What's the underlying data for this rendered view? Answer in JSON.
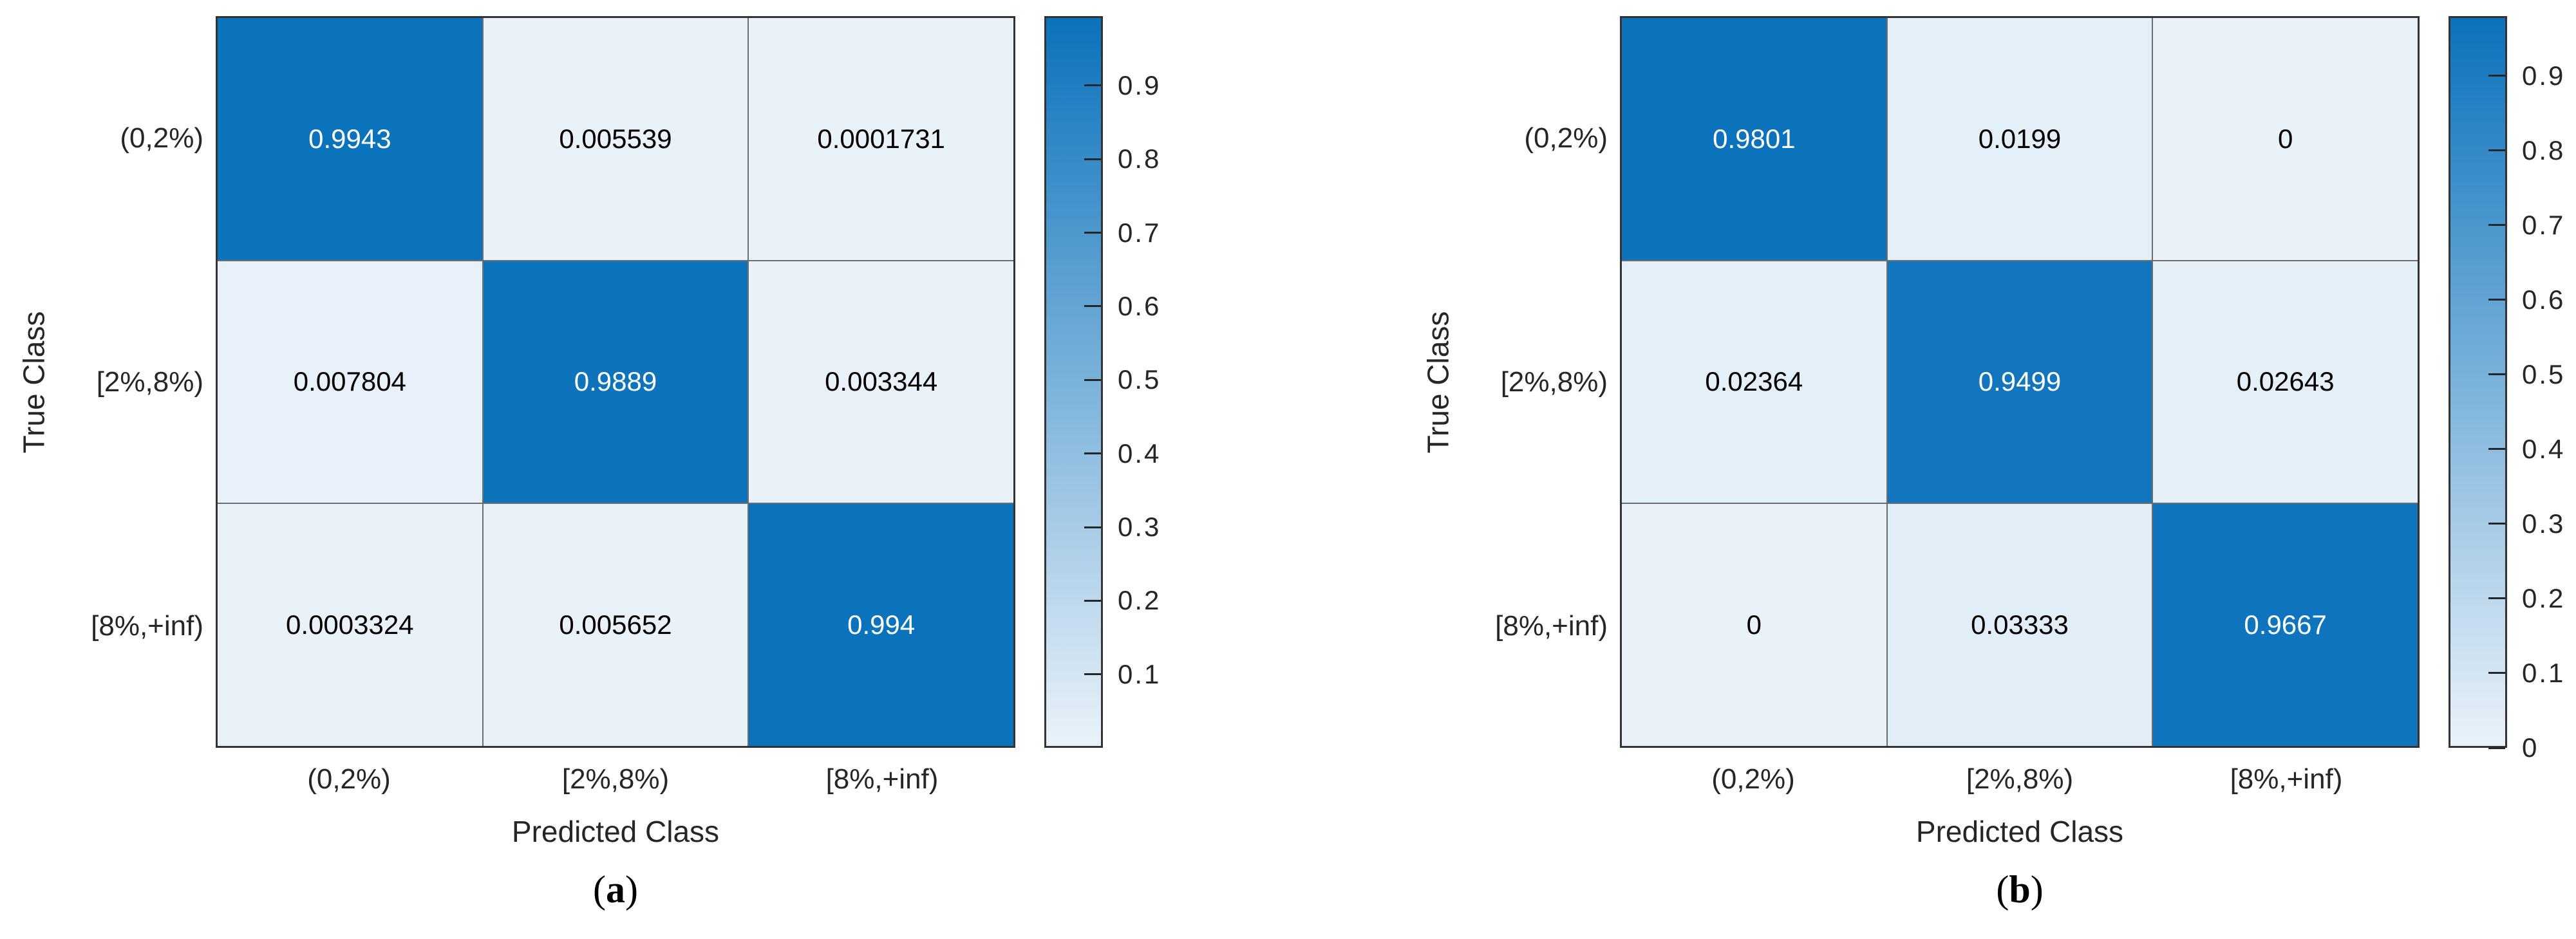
{
  "colors": {
    "diagonal_blue": "#0B72BC",
    "cell_low": "#EAF2F9",
    "grid_line": "#6E6E6E",
    "frame": "#333333",
    "axis_text": "#262626",
    "cell_text_on_dark": "#FFFFFF",
    "cell_text_on_light": "#000000"
  },
  "chart_data": [
    {
      "type": "heatmap",
      "panel": "a",
      "caption_prefix": "(",
      "caption_letter": "a",
      "caption_suffix": ")",
      "xlabel": "Predicted Class",
      "ylabel": "True Class",
      "x_categories": [
        "(0,2%)",
        "[2%,8%)",
        "[8%,+inf)"
      ],
      "y_categories": [
        "(0,2%)",
        "[2%,8%)",
        "[8%,+inf)"
      ],
      "values": [
        [
          0.9943,
          0.005539,
          0.0001731
        ],
        [
          0.007804,
          0.9889,
          0.003344
        ],
        [
          0.0003324,
          0.005652,
          0.994
        ]
      ],
      "cell_labels": [
        [
          "0.9943",
          "0.005539",
          "0.0001731"
        ],
        [
          "0.007804",
          "0.9889",
          "0.003344"
        ],
        [
          "0.0003324",
          "0.005652",
          "0.994"
        ]
      ],
      "colorbar": {
        "min": 0.0001731,
        "max": 0.9943,
        "ticks": [
          0.9,
          0.8,
          0.7,
          0.6,
          0.5,
          0.4,
          0.3,
          0.2,
          0.1
        ],
        "tick_labels": [
          "0.9",
          "0.8",
          "0.7",
          "0.6",
          "0.5",
          "0.4",
          "0.3",
          "0.2",
          "0.1"
        ],
        "legend_position": "right"
      },
      "grid": true
    },
    {
      "type": "heatmap",
      "panel": "b",
      "caption_prefix": "(",
      "caption_letter": "b",
      "caption_suffix": ")",
      "xlabel": "Predicted Class",
      "ylabel": "True Class",
      "x_categories": [
        "(0,2%)",
        "[2%,8%)",
        "[8%,+inf)"
      ],
      "y_categories": [
        "(0,2%)",
        "[2%,8%)",
        "[8%,+inf)"
      ],
      "values": [
        [
          0.9801,
          0.0199,
          0
        ],
        [
          0.02364,
          0.9499,
          0.02643
        ],
        [
          0,
          0.03333,
          0.9667
        ]
      ],
      "cell_labels": [
        [
          "0.9801",
          "0.0199",
          "0"
        ],
        [
          "0.02364",
          "0.9499",
          "0.02643"
        ],
        [
          "0",
          "0.03333",
          "0.9667"
        ]
      ],
      "colorbar": {
        "min": 0,
        "max": 0.9801,
        "ticks": [
          0.9,
          0.8,
          0.7,
          0.6,
          0.5,
          0.4,
          0.3,
          0.2,
          0.1,
          0
        ],
        "tick_labels": [
          "0.9",
          "0.8",
          "0.7",
          "0.6",
          "0.5",
          "0.4",
          "0.3",
          "0.2",
          "0.1",
          "0"
        ],
        "legend_position": "right"
      },
      "grid": true
    }
  ]
}
